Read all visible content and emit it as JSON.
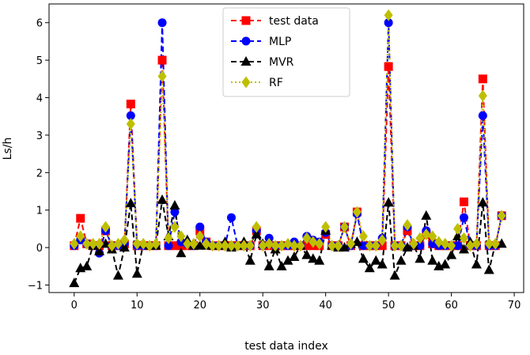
{
  "chart_data": {
    "type": "line",
    "xlabel": "test data index",
    "ylabel": "Ls/h",
    "xlim": [
      -4,
      71.5
    ],
    "ylim": [
      -1.2,
      6.5
    ],
    "xticks": [
      0,
      10,
      20,
      30,
      40,
      50,
      60,
      70
    ],
    "yticks": [
      -1,
      0,
      1,
      2,
      3,
      4,
      5,
      6
    ],
    "grid": false,
    "legend_position": "top-center",
    "series": [
      {
        "name": "test data",
        "color": "#ff0000",
        "line": "dashed",
        "marker": "square",
        "values": [
          0.05,
          0.78,
          0.1,
          0.05,
          0.05,
          0.45,
          0.05,
          0.05,
          0.1,
          3.83,
          0.05,
          0.05,
          0.05,
          0.05,
          5.0,
          0.05,
          0.05,
          0.05,
          0.05,
          0.05,
          0.45,
          0.15,
          0.05,
          0.05,
          0.05,
          0.05,
          0.05,
          0.05,
          0.05,
          0.45,
          0.05,
          0.05,
          0.05,
          0.05,
          0.05,
          0.05,
          0.05,
          0.05,
          0.05,
          0.05,
          0.35,
          0.05,
          0.05,
          0.55,
          0.05,
          0.95,
          0.05,
          0.05,
          0.05,
          0.05,
          4.83,
          0.05,
          0.05,
          0.45,
          0.05,
          0.05,
          0.35,
          0.1,
          0.05,
          0.05,
          0.05,
          0.05,
          1.22,
          0.05,
          0.05,
          4.5,
          0.05,
          0.05,
          0.85
        ]
      },
      {
        "name": "MLP",
        "color": "#0000ff",
        "line": "dashed",
        "marker": "circle",
        "values": [
          0.05,
          0.2,
          0.1,
          0.05,
          -0.15,
          0.45,
          0.05,
          0.05,
          0.1,
          3.52,
          0.05,
          0.05,
          0.05,
          0.05,
          6.0,
          0.05,
          0.95,
          0.15,
          0.1,
          0.05,
          0.55,
          0.15,
          0.05,
          0.05,
          0.05,
          0.8,
          0.05,
          0.05,
          0.05,
          0.45,
          0.05,
          0.25,
          0.05,
          0.05,
          0.05,
          0.15,
          0.05,
          0.3,
          0.2,
          0.15,
          0.4,
          0.05,
          0.05,
          0.55,
          0.05,
          0.9,
          0.05,
          0.05,
          0.05,
          0.25,
          6.0,
          0.05,
          0.05,
          0.55,
          0.05,
          0.05,
          0.45,
          0.1,
          0.05,
          0.05,
          0.05,
          0.05,
          0.8,
          0.05,
          0.05,
          3.52,
          0.05,
          0.05,
          0.85
        ]
      },
      {
        "name": "MVR",
        "color": "#000000",
        "line": "dashed",
        "marker": "triangle",
        "values": [
          -0.95,
          -0.55,
          -0.5,
          0.05,
          -0.1,
          0.1,
          -0.05,
          -0.75,
          0.0,
          1.18,
          -0.7,
          0.1,
          0.05,
          0.05,
          1.27,
          0.3,
          1.12,
          -0.15,
          0.2,
          0.05,
          0.05,
          0.05,
          0.05,
          0.05,
          0.15,
          0.0,
          0.05,
          0.15,
          -0.35,
          0.35,
          0.1,
          -0.5,
          -0.05,
          -0.5,
          -0.35,
          -0.25,
          0.05,
          -0.2,
          -0.3,
          -0.35,
          0.45,
          0.05,
          0.0,
          0.0,
          0.1,
          0.15,
          -0.3,
          -0.55,
          -0.35,
          -0.45,
          1.2,
          -0.75,
          -0.35,
          0.0,
          0.05,
          -0.3,
          0.85,
          -0.35,
          -0.5,
          -0.45,
          -0.2,
          0.3,
          -0.05,
          0.15,
          -0.45,
          1.2,
          -0.6,
          0.1,
          0.1
        ]
      },
      {
        "name": "RF",
        "color": "#bfbf00",
        "line": "dotted",
        "marker": "diamond",
        "values": [
          0.1,
          0.3,
          0.1,
          0.1,
          0.1,
          0.55,
          0.05,
          0.1,
          0.2,
          3.3,
          0.1,
          0.1,
          0.05,
          0.1,
          4.57,
          0.25,
          0.55,
          0.3,
          0.1,
          0.1,
          0.3,
          0.1,
          0.05,
          0.05,
          0.05,
          0.05,
          0.05,
          0.05,
          0.05,
          0.55,
          0.05,
          0.1,
          0.05,
          0.05,
          0.1,
          0.05,
          0.05,
          0.25,
          0.15,
          0.1,
          0.55,
          0.05,
          0.05,
          0.55,
          0.1,
          0.95,
          0.3,
          0.05,
          0.05,
          0.2,
          6.2,
          0.05,
          0.05,
          0.6,
          0.1,
          0.25,
          0.35,
          0.3,
          0.15,
          0.1,
          0.05,
          0.5,
          0.25,
          0.05,
          0.1,
          4.05,
          0.1,
          0.1,
          0.85
        ]
      }
    ]
  }
}
